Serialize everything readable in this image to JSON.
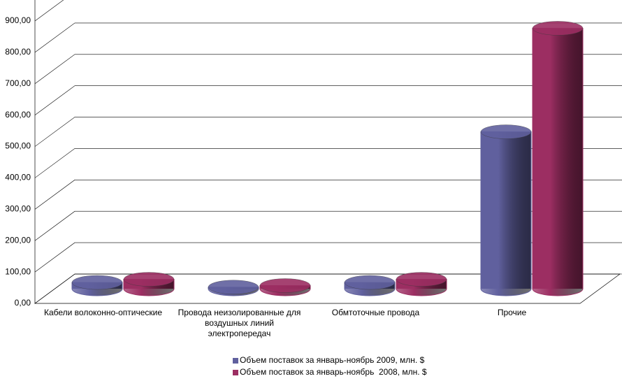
{
  "chart_data": {
    "type": "cylinder-bar",
    "categories": [
      "Кабели волоконно-оптические",
      "Провода неизолированные для воздушных линий электропередач",
      "Обмтоточные провода",
      "Прочие"
    ],
    "series": [
      {
        "name": "Объем поставок за январь-ноябрь 2009, млн. $",
        "color": "#60609e",
        "values": [
          20,
          5,
          20,
          500
        ]
      },
      {
        "name": "Объем поставок за январь-ноябрь  2008, млн. $",
        "color": "#9c2e62",
        "values": [
          30,
          10,
          30,
          830
        ]
      }
    ],
    "ylim": [
      0,
      900
    ],
    "yticks": [
      {
        "value": 0,
        "label": "0,00"
      },
      {
        "value": 100,
        "label": "100,00"
      },
      {
        "value": 200,
        "label": "200,00"
      },
      {
        "value": 300,
        "label": "300,00"
      },
      {
        "value": 400,
        "label": "400,00"
      },
      {
        "value": 500,
        "label": "500,00"
      },
      {
        "value": 600,
        "label": "600,00"
      },
      {
        "value": 700,
        "label": "700,00"
      },
      {
        "value": 800,
        "label": "800,00"
      },
      {
        "value": 900,
        "label": "900,00"
      }
    ],
    "grid": true
  }
}
